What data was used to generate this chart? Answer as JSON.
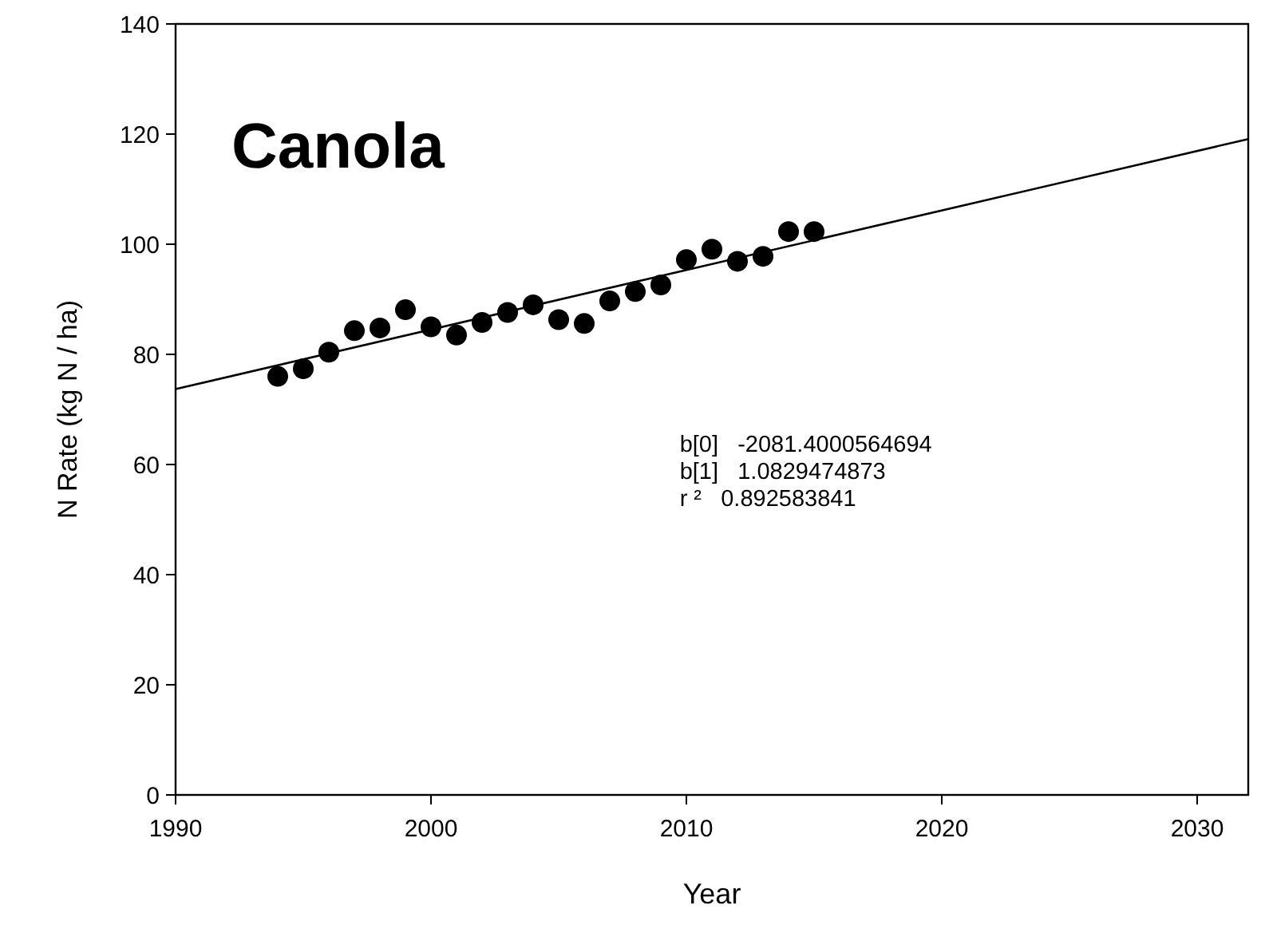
{
  "chart_data": {
    "type": "scatter",
    "title": "Canola",
    "xlabel": "Year",
    "ylabel": "N Rate (kg N / ha)",
    "xlim": [
      1990,
      2032
    ],
    "xticks": [
      1990,
      2000,
      2010,
      2020,
      2030
    ],
    "ylim": [
      0,
      140
    ],
    "yticks": [
      0,
      20,
      40,
      60,
      80,
      100,
      120,
      140
    ],
    "grid": false,
    "series": [
      {
        "marker": "circle",
        "color": "#000000",
        "x": [
          1994,
          1995,
          1996,
          1997,
          1998,
          1999,
          2000,
          2001,
          2002,
          2003,
          2004,
          2005,
          2006,
          2007,
          2008,
          2009,
          2010,
          2011,
          2012,
          2013,
          2014,
          2015
        ],
        "values": [
          76,
          77.4,
          80.4,
          84.3,
          84.8,
          88.1,
          85,
          83.5,
          85.8,
          87.6,
          89,
          86.3,
          85.6,
          89.7,
          91.4,
          92.6,
          97.2,
          99.1,
          96.9,
          97.8,
          102.3,
          102.3
        ]
      },
      {
        "type": "line",
        "color": "#000000",
        "x": [
          1990,
          2032
        ],
        "values": [
          73.7,
          119.1
        ],
        "line_style": "solid",
        "marker": "none"
      }
    ],
    "annotations": [
      "b[0]   -2081.4000564694",
      "b[1]   1.0829474873",
      "r ²   0.892583841"
    ]
  }
}
